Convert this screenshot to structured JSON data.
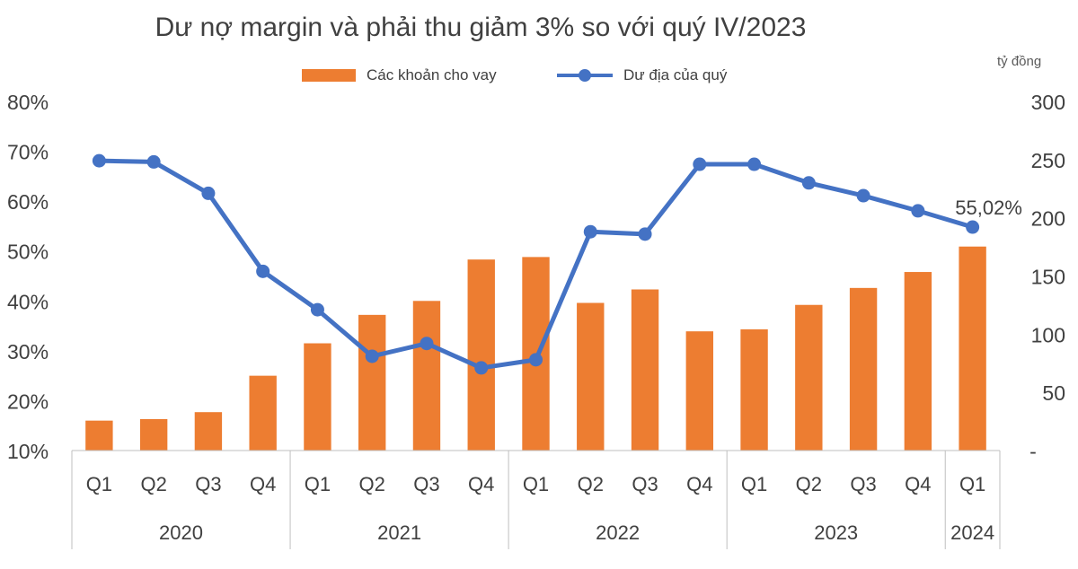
{
  "chart_data": {
    "type": "bar+line",
    "title": "Dư nợ margin và phải thu giảm 3% so với quý IV/2023",
    "unit_label": "tỷ đồng",
    "quarters": [
      "Q1",
      "Q2",
      "Q3",
      "Q4",
      "Q1",
      "Q2",
      "Q3",
      "Q4",
      "Q1",
      "Q2",
      "Q3",
      "Q4",
      "Q1",
      "Q2",
      "Q3",
      "Q4",
      "Q1"
    ],
    "years": [
      {
        "label": "2020",
        "span": 4
      },
      {
        "label": "2021",
        "span": 4
      },
      {
        "label": "2022",
        "span": 4
      },
      {
        "label": "2023",
        "span": 4
      },
      {
        "label": "2024",
        "span": 1
      }
    ],
    "left_axis": {
      "min": 10,
      "max": 80,
      "step": 10,
      "ticks": [
        "80%",
        "70%",
        "60%",
        "50%",
        "40%",
        "30%",
        "20%",
        "10%"
      ]
    },
    "right_axis": {
      "min": 0,
      "max": 300,
      "step": 50,
      "ticks": [
        "300",
        "250",
        "200",
        "150",
        "100",
        "50",
        "-"
      ]
    },
    "series": [
      {
        "name": "Các khoản cho vay",
        "type": "bar",
        "axis": "left",
        "color": "#ED7D31",
        "values": [
          16,
          16.3,
          17.7,
          25,
          31.5,
          37.2,
          40,
          48.3,
          48.8,
          39.6,
          42.3,
          33.9,
          34.3,
          39.2,
          42.6,
          45.8,
          50.9
        ]
      },
      {
        "name": "Dư địa của quý",
        "type": "line",
        "axis": "right",
        "color": "#4472C4",
        "values": [
          249,
          248,
          221,
          154,
          121,
          81,
          92,
          71,
          78,
          188,
          186,
          246,
          246,
          230,
          219,
          206,
          192
        ]
      }
    ],
    "annotation": "55,02%",
    "grid": false,
    "legend_position": "top"
  }
}
